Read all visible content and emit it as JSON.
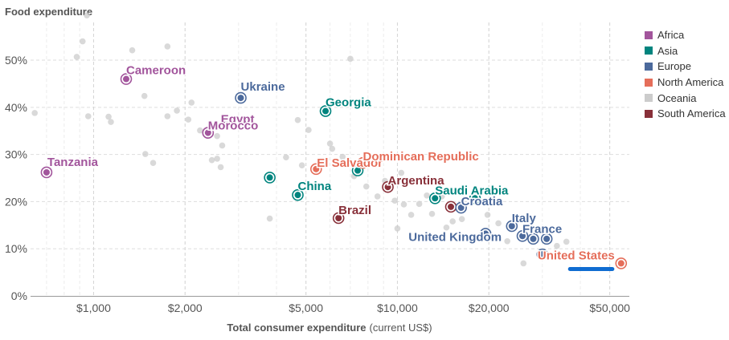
{
  "chart_data": {
    "type": "scatter",
    "title": "",
    "ylabel": "Food expenditure",
    "xlabel_main": "Total consumer expenditure",
    "xlabel_unit": "(current US$)",
    "x_scale": "log",
    "xlim": [
      620,
      58000
    ],
    "ylim": [
      0,
      58
    ],
    "y_ticks": [
      0,
      10,
      20,
      30,
      40,
      50
    ],
    "y_tick_labels": [
      "0%",
      "10%",
      "20%",
      "30%",
      "40%",
      "50%"
    ],
    "x_ticks": [
      1000,
      2000,
      5000,
      10000,
      20000,
      50000
    ],
    "x_tick_labels": [
      "$1,000",
      "$2,000",
      "$5,000",
      "$10,000",
      "$20,000",
      "$50,000"
    ],
    "legend": [
      {
        "name": "Africa",
        "color": "#a2559c"
      },
      {
        "name": "Asia",
        "color": "#00847e"
      },
      {
        "name": "Europe",
        "color": "#4c6a9c"
      },
      {
        "name": "North America",
        "color": "#e56e5a"
      },
      {
        "name": "Oceania",
        "color": "#cccccc"
      },
      {
        "name": "South America",
        "color": "#883039"
      }
    ],
    "labeled_points": [
      {
        "country": "Tanzania",
        "region": "Africa",
        "x": 700,
        "y": 26.2,
        "label": "Tanzania"
      },
      {
        "country": "Cameroon",
        "region": "Africa",
        "x": 1280,
        "y": 46,
        "label": "Cameroon"
      },
      {
        "country": "Egypt",
        "region": "Africa",
        "x": 2380,
        "y": 34.6,
        "label": "Egypt"
      },
      {
        "country": "Morocco",
        "region": "Africa",
        "x": 2380,
        "y": 34.6,
        "label": "Morocco"
      },
      {
        "country": "Ukraine",
        "region": "Europe",
        "x": 3050,
        "y": 42,
        "label": "Ukraine"
      },
      {
        "country": "Georgia",
        "region": "Asia",
        "x": 5800,
        "y": 39.2,
        "label": "Georgia"
      },
      {
        "country": "El Salvador",
        "region": "North America",
        "x": 5400,
        "y": 26.9,
        "label": "El Salvador"
      },
      {
        "country": "Dominican Republic",
        "region": "North America",
        "x": 7700,
        "y": 28.2,
        "label": "Dominican Republic"
      },
      {
        "country": "China",
        "region": "Asia",
        "x": 4700,
        "y": 21.4,
        "label": "China"
      },
      {
        "country": "Brazil",
        "region": "South America",
        "x": 6400,
        "y": 16.5,
        "label": "Brazil"
      },
      {
        "country": "Argentina",
        "region": "South America",
        "x": 9300,
        "y": 23.1,
        "label": "Argentina"
      },
      {
        "country": "Saudi Arabia",
        "region": "Asia",
        "x": 13300,
        "y": 20.7,
        "label": "Saudi Arabia"
      },
      {
        "country": "Croatia",
        "region": "Europe",
        "x": 16200,
        "y": 18.7,
        "label": "Croatia"
      },
      {
        "country": "United Kingdom",
        "region": "Europe",
        "x": 19500,
        "y": 13.2,
        "label": "United Kingdom"
      },
      {
        "country": "Italy",
        "region": "Europe",
        "x": 23800,
        "y": 14.8,
        "label": "Italy"
      },
      {
        "country": "France",
        "region": "Europe",
        "x": 25800,
        "y": 12.7,
        "label": "France"
      },
      {
        "country": "United States",
        "region": "North America",
        "x": 54500,
        "y": 6.9,
        "label": "United States"
      }
    ],
    "unlabeled_points": [
      {
        "region": "Asia",
        "x": 3800,
        "y": 25.1
      },
      {
        "region": "Asia",
        "x": 7400,
        "y": 26.6
      },
      {
        "region": "South America",
        "x": 15000,
        "y": 18.9
      },
      {
        "region": "Europe",
        "x": 28000,
        "y": 12.1
      },
      {
        "region": "Europe",
        "x": 31000,
        "y": 12.1
      },
      {
        "region": "Europe",
        "x": 30000,
        "y": 8.8
      },
      {
        "region": "Asia",
        "x": 18000,
        "y": 20.7
      }
    ],
    "background_points": [
      {
        "x": 950,
        "y": 59.5
      },
      {
        "x": 920,
        "y": 54
      },
      {
        "x": 880,
        "y": 50.7
      },
      {
        "x": 1340,
        "y": 52.1
      },
      {
        "x": 1750,
        "y": 52.9
      },
      {
        "x": 1470,
        "y": 42.4
      },
      {
        "x": 1560,
        "y": 47.8
      },
      {
        "x": 2100,
        "y": 41
      },
      {
        "x": 1880,
        "y": 39.3
      },
      {
        "x": 1750,
        "y": 38.1
      },
      {
        "x": 2050,
        "y": 37.4
      },
      {
        "x": 2240,
        "y": 35.1
      },
      {
        "x": 1120,
        "y": 38
      },
      {
        "x": 1140,
        "y": 36.9
      },
      {
        "x": 960,
        "y": 38.1
      },
      {
        "x": 640,
        "y": 38.8
      },
      {
        "x": 2550,
        "y": 33.9
      },
      {
        "x": 2650,
        "y": 31.9
      },
      {
        "x": 2550,
        "y": 29.1
      },
      {
        "x": 2450,
        "y": 28.8
      },
      {
        "x": 2620,
        "y": 27.3
      },
      {
        "x": 1480,
        "y": 30.1
      },
      {
        "x": 1570,
        "y": 28.2
      },
      {
        "x": 4300,
        "y": 29.4
      },
      {
        "x": 4700,
        "y": 37.3
      },
      {
        "x": 5100,
        "y": 35.2
      },
      {
        "x": 4850,
        "y": 27.7
      },
      {
        "x": 6000,
        "y": 32.3
      },
      {
        "x": 6100,
        "y": 31.2
      },
      {
        "x": 6600,
        "y": 29.5
      },
      {
        "x": 7000,
        "y": 50.3
      },
      {
        "x": 7200,
        "y": 25.4
      },
      {
        "x": 7900,
        "y": 23.2
      },
      {
        "x": 3800,
        "y": 16.4
      },
      {
        "x": 8600,
        "y": 21.1
      },
      {
        "x": 9800,
        "y": 20.2
      },
      {
        "x": 10500,
        "y": 19.4
      },
      {
        "x": 10000,
        "y": 14.3
      },
      {
        "x": 11100,
        "y": 17.2
      },
      {
        "x": 11800,
        "y": 19.5
      },
      {
        "x": 12500,
        "y": 21.3
      },
      {
        "x": 14000,
        "y": 21.1
      },
      {
        "x": 13000,
        "y": 17.4
      },
      {
        "x": 15200,
        "y": 15.8
      },
      {
        "x": 16300,
        "y": 16.3
      },
      {
        "x": 14500,
        "y": 14.5
      },
      {
        "x": 17800,
        "y": 12.5
      },
      {
        "x": 19800,
        "y": 17.2
      },
      {
        "x": 21500,
        "y": 15.4
      },
      {
        "x": 23000,
        "y": 11.6
      },
      {
        "x": 26000,
        "y": 6.9
      },
      {
        "x": 33500,
        "y": 10.6
      },
      {
        "x": 36000,
        "y": 11.5
      },
      {
        "x": 30500,
        "y": 13.9
      },
      {
        "x": 10300,
        "y": 26.1
      },
      {
        "x": 9100,
        "y": 24.4
      }
    ],
    "annotations": [
      {
        "type": "highlight-line",
        "color": "#0f6cd1",
        "x_from": 37000,
        "x_to": 51000,
        "y": 5.7
      }
    ]
  }
}
